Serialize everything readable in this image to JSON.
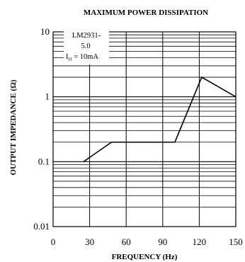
{
  "chart_data": {
    "type": "line",
    "title": "MAXIMUM POWER DISSIPATION",
    "xlabel": "FREQUENCY (Hz)",
    "ylabel": "OUTPUT IMPEDANCE (Ω)",
    "x_scale": "linear",
    "y_scale": "log",
    "xlim": [
      0,
      150
    ],
    "ylim": [
      0.01,
      10
    ],
    "x_ticks": [
      "0",
      "30",
      "60",
      "90",
      "120",
      "150"
    ],
    "y_ticks": [
      "0.01",
      "0.1",
      "1",
      "10"
    ],
    "grid": true,
    "annotation": {
      "line1": "LM2931-",
      "line2": "5.0",
      "line3_sym": "I",
      "line3_sub": "O",
      "line3_rest": " = 10mA"
    },
    "series": [
      {
        "x": [
          25,
          48,
          100,
          122,
          150
        ],
        "y": [
          0.1,
          0.2,
          0.2,
          2,
          1
        ]
      }
    ]
  }
}
